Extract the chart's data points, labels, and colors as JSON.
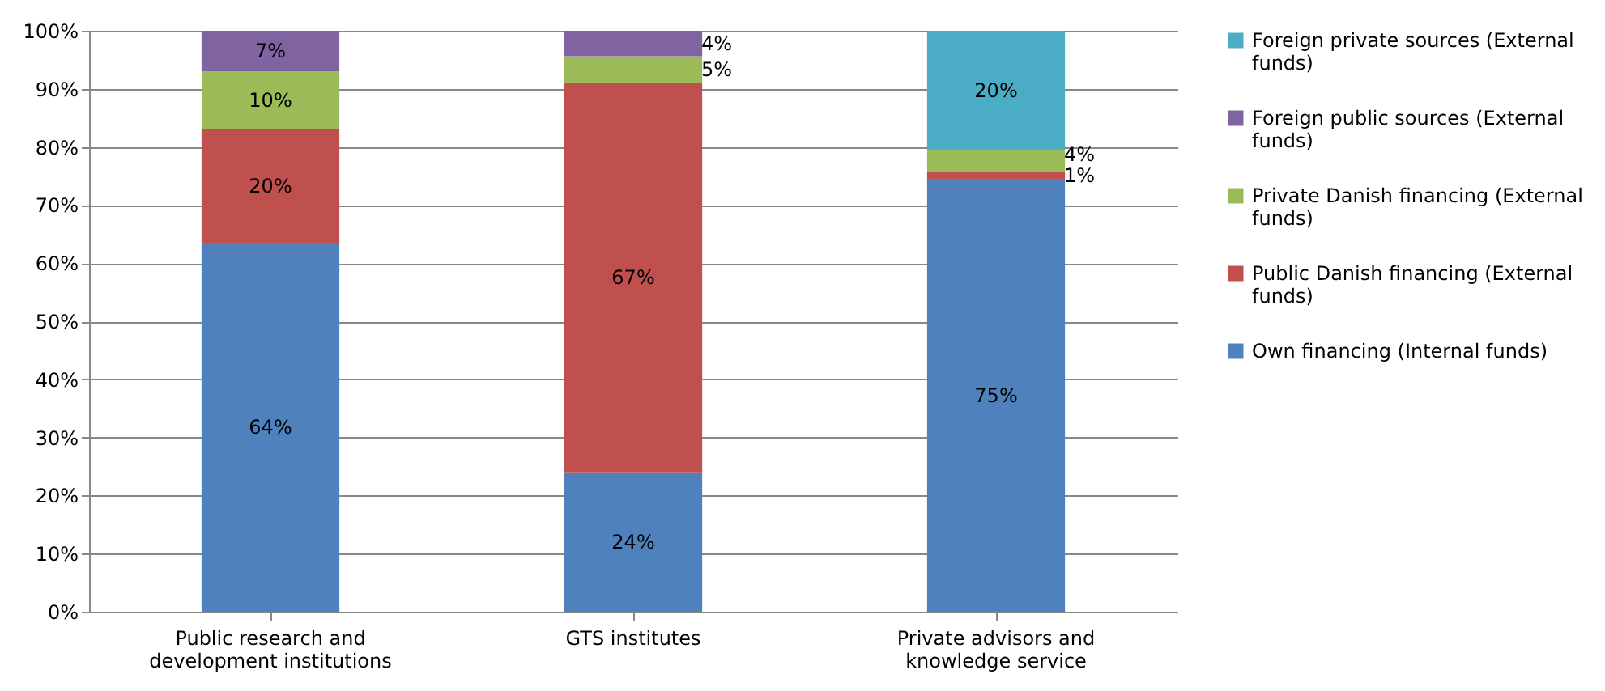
{
  "chart_data": {
    "type": "bar",
    "stacked": true,
    "categories": [
      "Public research and development institutions",
      "GTS institutes",
      "Private advisors and knowledge service"
    ],
    "series": [
      {
        "name": "Own financing (Internal funds)",
        "color": "#4f81bd",
        "values": [
          63.5,
          24,
          74.5
        ],
        "value_labels": [
          "64%",
          "24%",
          "75%"
        ]
      },
      {
        "name": "Public Danish financing (External funds)",
        "color": "#c0504d",
        "values": [
          19.5,
          67,
          1.2
        ],
        "value_labels": [
          "20%",
          "67%",
          "1%"
        ]
      },
      {
        "name": "Private Danish financing (External funds)",
        "color": "#9bbb59",
        "values": [
          10,
          4.6,
          3.8
        ],
        "value_labels": [
          "10%",
          "5%",
          "4%"
        ]
      },
      {
        "name": "Foreign public sources (External funds)",
        "color": "#8064a2",
        "values": [
          7,
          4.4,
          null
        ],
        "value_labels": [
          "7%",
          "4%",
          null
        ]
      },
      {
        "name": "Foreign private sources (External funds)",
        "color": "#4bacc6",
        "values": [
          null,
          null,
          20.5
        ],
        "value_labels": [
          null,
          null,
          "20%"
        ]
      }
    ],
    "ylim": [
      0,
      100
    ],
    "yticks": [
      {
        "value": 0,
        "label": "0%"
      },
      {
        "value": 10,
        "label": "10%"
      },
      {
        "value": 20,
        "label": "20%"
      },
      {
        "value": 30,
        "label": "30%"
      },
      {
        "value": 40,
        "label": "40%"
      },
      {
        "value": 50,
        "label": "50%"
      },
      {
        "value": 60,
        "label": "60%"
      },
      {
        "value": 70,
        "label": "70%"
      },
      {
        "value": 80,
        "label": "80%"
      },
      {
        "value": 90,
        "label": "90%"
      },
      {
        "value": 100,
        "label": "100%"
      }
    ],
    "grid": "y",
    "legend": "right"
  }
}
